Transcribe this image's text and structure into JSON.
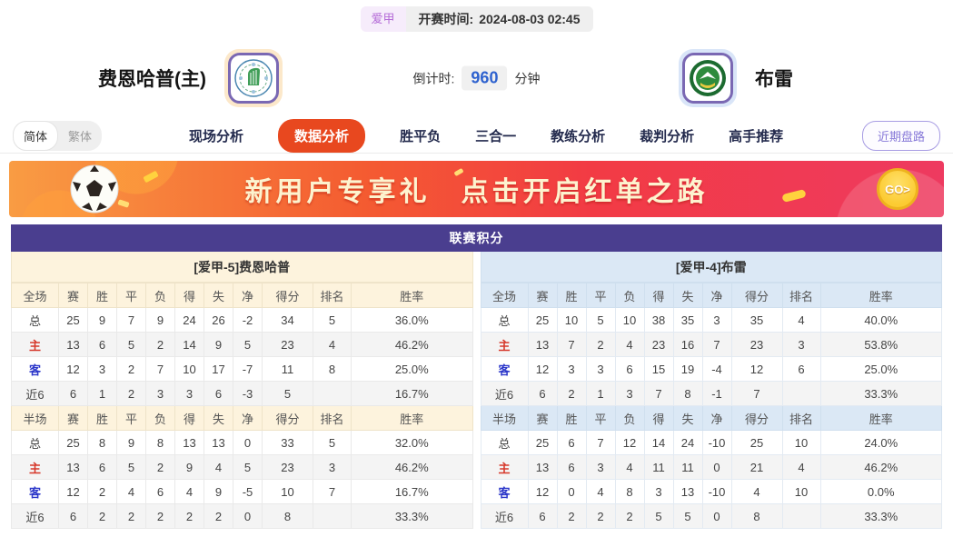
{
  "header": {
    "league_tag": "爱甲",
    "kickoff_label": "开赛时间:",
    "kickoff_time": "2024-08-03 02:45",
    "home_team": "费恩哈普(主)",
    "away_team": "布雷",
    "countdown_label": "倒计时:",
    "countdown_value": "960",
    "countdown_unit": "分钟"
  },
  "nav": {
    "lang_simplified": "简体",
    "lang_traditional": "繁体",
    "tabs": [
      "现场分析",
      "数据分析",
      "胜平负",
      "三合一",
      "教练分析",
      "裁判分析",
      "高手推荐"
    ],
    "active_tab": "数据分析",
    "recent_button": "近期盘路"
  },
  "banner": {
    "text_left": "新用户专享礼",
    "text_right": "点击开启红单之路",
    "go_label": "GO>"
  },
  "table": {
    "title": "联赛积分",
    "columns_full": [
      "全场",
      "赛",
      "胜",
      "平",
      "负",
      "得",
      "失",
      "净",
      "得分",
      "排名",
      "胜率"
    ],
    "columns_half": [
      "半场",
      "赛",
      "胜",
      "平",
      "负",
      "得",
      "失",
      "净",
      "得分",
      "排名",
      "胜率"
    ],
    "left": {
      "team_header": "[爱甲-5]费恩哈普",
      "full_rows": [
        [
          "总",
          "25",
          "9",
          "7",
          "9",
          "24",
          "26",
          "-2",
          "34",
          "5",
          "36.0%"
        ],
        [
          "主",
          "13",
          "6",
          "5",
          "2",
          "14",
          "9",
          "5",
          "23",
          "4",
          "46.2%"
        ],
        [
          "客",
          "12",
          "3",
          "2",
          "7",
          "10",
          "17",
          "-7",
          "11",
          "8",
          "25.0%"
        ],
        [
          "近6",
          "6",
          "1",
          "2",
          "3",
          "3",
          "6",
          "-3",
          "5",
          "",
          "16.7%"
        ]
      ],
      "half_rows": [
        [
          "总",
          "25",
          "8",
          "9",
          "8",
          "13",
          "13",
          "0",
          "33",
          "5",
          "32.0%"
        ],
        [
          "主",
          "13",
          "6",
          "5",
          "2",
          "9",
          "4",
          "5",
          "23",
          "3",
          "46.2%"
        ],
        [
          "客",
          "12",
          "2",
          "4",
          "6",
          "4",
          "9",
          "-5",
          "10",
          "7",
          "16.7%"
        ],
        [
          "近6",
          "6",
          "2",
          "2",
          "2",
          "2",
          "2",
          "0",
          "8",
          "",
          "33.3%"
        ]
      ]
    },
    "right": {
      "team_header": "[爱甲-4]布雷",
      "full_rows": [
        [
          "总",
          "25",
          "10",
          "5",
          "10",
          "38",
          "35",
          "3",
          "35",
          "4",
          "40.0%"
        ],
        [
          "主",
          "13",
          "7",
          "2",
          "4",
          "23",
          "16",
          "7",
          "23",
          "3",
          "53.8%"
        ],
        [
          "客",
          "12",
          "3",
          "3",
          "6",
          "15",
          "19",
          "-4",
          "12",
          "6",
          "25.0%"
        ],
        [
          "近6",
          "6",
          "2",
          "1",
          "3",
          "7",
          "8",
          "-1",
          "7",
          "",
          "33.3%"
        ]
      ],
      "half_rows": [
        [
          "总",
          "25",
          "6",
          "7",
          "12",
          "14",
          "24",
          "-10",
          "25",
          "10",
          "24.0%"
        ],
        [
          "主",
          "13",
          "6",
          "3",
          "4",
          "11",
          "11",
          "0",
          "21",
          "4",
          "46.2%"
        ],
        [
          "客",
          "12",
          "0",
          "4",
          "8",
          "3",
          "13",
          "-10",
          "4",
          "10",
          "0.0%"
        ],
        [
          "近6",
          "6",
          "2",
          "2",
          "2",
          "5",
          "5",
          "0",
          "8",
          "",
          "33.3%"
        ]
      ]
    }
  },
  "colors": {
    "accent_orange": "#e8481f",
    "title_purple": "#4a3e8f",
    "home_red": "#d6382b",
    "away_blue": "#2b36c9",
    "home_theme_bg": "#fdf3dd",
    "away_theme_bg": "#dbe8f5",
    "banner_gold": "#ffd23e",
    "countdown_blue": "#2e62cf"
  }
}
